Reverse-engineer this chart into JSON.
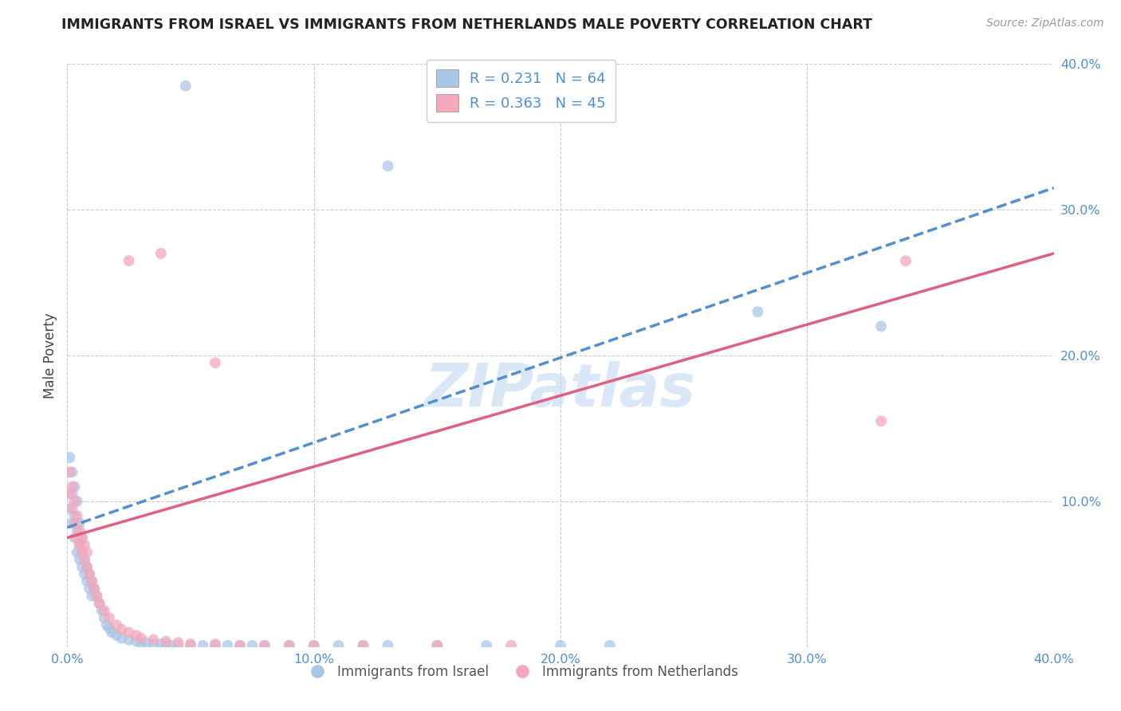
{
  "title": "IMMIGRANTS FROM ISRAEL VS IMMIGRANTS FROM NETHERLANDS MALE POVERTY CORRELATION CHART",
  "source": "Source: ZipAtlas.com",
  "ylabel": "Male Poverty",
  "xlim": [
    0.0,
    0.4
  ],
  "ylim": [
    0.0,
    0.4
  ],
  "xtick_vals": [
    0.0,
    0.1,
    0.2,
    0.3,
    0.4
  ],
  "ytick_vals": [
    0.0,
    0.1,
    0.2,
    0.3,
    0.4
  ],
  "xtick_labels": [
    "0.0%",
    "10.0%",
    "20.0%",
    "30.0%",
    "40.0%"
  ],
  "ytick_labels": [
    "",
    "10.0%",
    "20.0%",
    "30.0%",
    "40.0%"
  ],
  "israel_color": "#a8c8e8",
  "netherlands_color": "#f4a8bc",
  "israel_R": 0.231,
  "israel_N": 64,
  "netherlands_R": 0.363,
  "netherlands_N": 45,
  "israel_line_color": "#5090d0",
  "netherlands_line_color": "#e06080",
  "watermark": "ZIPatlas",
  "watermark_color": "#c0d8f0",
  "tick_color": "#5090d0",
  "title_color": "#222222",
  "source_color": "#999999",
  "grid_color": "#cccccc",
  "legend_label_color": "#5090d0",
  "bottom_legend_color": "#555555",
  "israel_x": [
    0.001,
    0.001,
    0.002,
    0.002,
    0.002,
    0.003,
    0.003,
    0.003,
    0.004,
    0.004,
    0.004,
    0.005,
    0.005,
    0.005,
    0.006,
    0.006,
    0.006,
    0.007,
    0.007,
    0.008,
    0.008,
    0.009,
    0.009,
    0.01,
    0.01,
    0.011,
    0.012,
    0.013,
    0.014,
    0.015,
    0.016,
    0.017,
    0.018,
    0.02,
    0.022,
    0.025,
    0.028,
    0.03,
    0.032,
    0.035,
    0.038,
    0.04,
    0.042,
    0.045,
    0.05,
    0.055,
    0.06,
    0.065,
    0.07,
    0.075,
    0.08,
    0.09,
    0.1,
    0.11,
    0.12,
    0.13,
    0.15,
    0.17,
    0.2,
    0.22,
    0.048,
    0.13,
    0.28,
    0.33
  ],
  "israel_y": [
    0.095,
    0.13,
    0.085,
    0.12,
    0.105,
    0.075,
    0.09,
    0.11,
    0.065,
    0.08,
    0.1,
    0.06,
    0.07,
    0.085,
    0.055,
    0.065,
    0.075,
    0.05,
    0.06,
    0.045,
    0.055,
    0.04,
    0.05,
    0.035,
    0.045,
    0.04,
    0.035,
    0.03,
    0.025,
    0.02,
    0.015,
    0.013,
    0.01,
    0.008,
    0.006,
    0.005,
    0.004,
    0.003,
    0.003,
    0.002,
    0.002,
    0.002,
    0.001,
    0.001,
    0.001,
    0.001,
    0.001,
    0.001,
    0.001,
    0.001,
    0.001,
    0.001,
    0.001,
    0.001,
    0.001,
    0.001,
    0.001,
    0.001,
    0.001,
    0.001,
    0.385,
    0.33,
    0.23,
    0.22
  ],
  "netherlands_x": [
    0.001,
    0.001,
    0.002,
    0.002,
    0.003,
    0.003,
    0.004,
    0.004,
    0.005,
    0.005,
    0.006,
    0.006,
    0.007,
    0.007,
    0.008,
    0.008,
    0.009,
    0.01,
    0.011,
    0.012,
    0.013,
    0.015,
    0.017,
    0.02,
    0.022,
    0.025,
    0.028,
    0.03,
    0.035,
    0.04,
    0.045,
    0.05,
    0.06,
    0.07,
    0.08,
    0.09,
    0.1,
    0.12,
    0.15,
    0.18,
    0.038,
    0.33,
    0.34,
    0.025,
    0.06
  ],
  "netherlands_y": [
    0.105,
    0.12,
    0.095,
    0.11,
    0.085,
    0.1,
    0.075,
    0.09,
    0.07,
    0.08,
    0.065,
    0.075,
    0.06,
    0.07,
    0.055,
    0.065,
    0.05,
    0.045,
    0.04,
    0.035,
    0.03,
    0.025,
    0.02,
    0.015,
    0.012,
    0.01,
    0.008,
    0.006,
    0.005,
    0.004,
    0.003,
    0.002,
    0.002,
    0.001,
    0.001,
    0.001,
    0.001,
    0.001,
    0.001,
    0.001,
    0.27,
    0.155,
    0.265,
    0.265,
    0.195
  ],
  "israel_line_x": [
    0.0,
    0.4
  ],
  "israel_line_y": [
    0.082,
    0.315
  ],
  "netherlands_line_x": [
    0.0,
    0.4
  ],
  "netherlands_line_y": [
    0.075,
    0.27
  ]
}
